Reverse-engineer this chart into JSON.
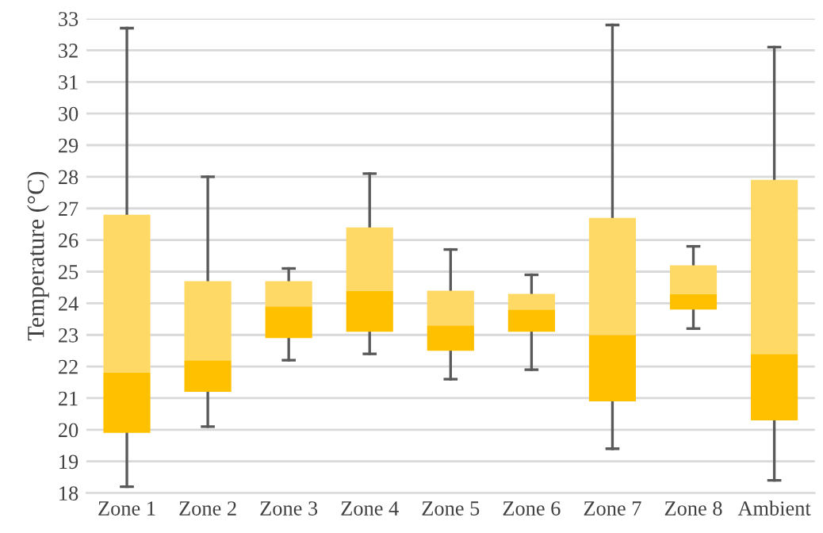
{
  "chart_data": {
    "type": "box",
    "ylabel": "Temperature (°C)",
    "categories": [
      "Zone 1",
      "Zone 2",
      "Zone 3",
      "Zone 4",
      "Zone 5",
      "Zone 6",
      "Zone 7",
      "Zone 8",
      "Ambient"
    ],
    "colors": [
      "#ffc000",
      "#ffc000",
      "#ffc000",
      "#ffc000",
      "#ffc000",
      "#ffc000",
      "#ffc000",
      "#ffc000",
      "#ffc000"
    ],
    "boxes": [
      {
        "low": 18.2,
        "q1": 19.9,
        "median": 21.8,
        "q3": 26.8,
        "high": 32.7
      },
      {
        "low": 20.1,
        "q1": 21.2,
        "median": 22.2,
        "q3": 24.7,
        "high": 28.0
      },
      {
        "low": 22.2,
        "q1": 22.9,
        "median": 23.9,
        "q3": 24.7,
        "high": 25.1
      },
      {
        "low": 22.4,
        "q1": 23.1,
        "median": 24.4,
        "q3": 26.4,
        "high": 28.1
      },
      {
        "low": 21.6,
        "q1": 22.5,
        "median": 23.3,
        "q3": 24.4,
        "high": 25.7
      },
      {
        "low": 21.9,
        "q1": 23.1,
        "median": 23.8,
        "q3": 24.3,
        "high": 24.9
      },
      {
        "low": 19.4,
        "q1": 20.9,
        "median": 23.0,
        "q3": 26.7,
        "high": 32.8
      },
      {
        "low": 23.2,
        "q1": 23.8,
        "median": 24.3,
        "q3": 25.2,
        "high": 25.8
      },
      {
        "low": 18.4,
        "q1": 20.3,
        "median": 22.4,
        "q3": 27.9,
        "high": 32.1
      }
    ],
    "ylim": [
      18,
      33
    ],
    "yticks": [
      18,
      19,
      20,
      21,
      22,
      23,
      24,
      25,
      26,
      27,
      28,
      29,
      30,
      31,
      32,
      33
    ],
    "grid": "y",
    "legend": false
  }
}
